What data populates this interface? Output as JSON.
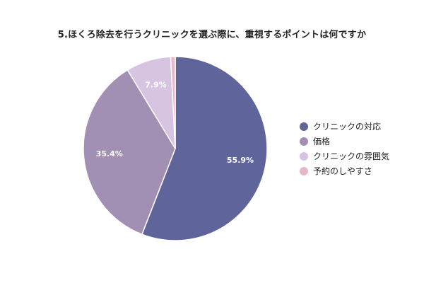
{
  "chart_data": {
    "type": "pie",
    "title": "5.ほくろ除去を行うクリニックを選ぶ際に、重視するポイントは何ですか",
    "categories": [
      "クリニックの対応",
      "価格",
      "クリニックの雰囲気",
      "予約のしやすさ"
    ],
    "values": [
      55.9,
      35.4,
      7.9,
      0.8
    ],
    "data_labels": [
      "55.9%",
      "35.4%",
      "7.9%",
      ""
    ],
    "colors": [
      "#5f649b",
      "#a18fb4",
      "#d6c4e1",
      "#e7b8c7"
    ],
    "legend_position": "right"
  }
}
